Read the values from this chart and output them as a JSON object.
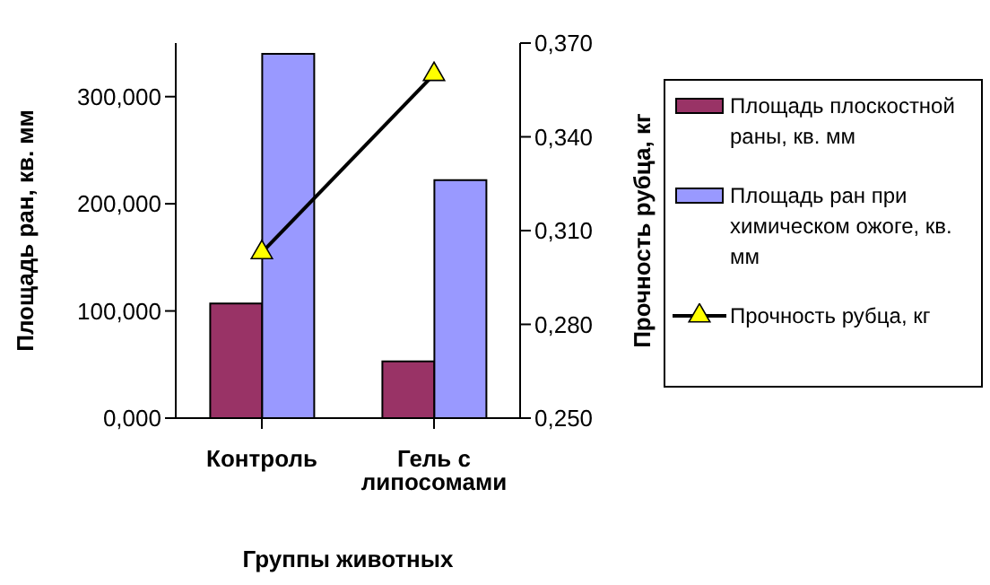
{
  "chart_data": {
    "type": "bar",
    "xlabel": "Группы животных",
    "ylabel": "Площадь ран, кв. мм",
    "y2label": "Прочность рубца, кг",
    "categories": [
      "Контроль",
      "Гель с липосомами"
    ],
    "series": [
      {
        "name": "Площадь плоскостной раны, кв. мм",
        "color": "#993366",
        "values": [
          107,
          53
        ]
      },
      {
        "name": "Площадь ран при химическом ожоге, кв. мм",
        "color": "#9999ff",
        "values": [
          340,
          222
        ]
      },
      {
        "name": "Прочность рубца, кг",
        "type": "line",
        "axis": "y2",
        "color": "#000000",
        "marker": "triangle",
        "values": [
          0.303,
          0.36
        ]
      }
    ],
    "ylim": [
      0,
      350
    ],
    "yticks": [
      {
        "value": 0,
        "label": "0,000"
      },
      {
        "value": 100,
        "label": "100,000"
      },
      {
        "value": 200,
        "label": "200,000"
      },
      {
        "value": 300,
        "label": "300,000"
      }
    ],
    "y2lim": [
      0.25,
      0.37
    ],
    "y2ticks": [
      {
        "value": 0.25,
        "label": "0,250"
      },
      {
        "value": 0.28,
        "label": "0,280"
      },
      {
        "value": 0.31,
        "label": "0,310"
      },
      {
        "value": 0.34,
        "label": "0,340"
      },
      {
        "value": 0.37,
        "label": "0,370"
      }
    ],
    "grid": false,
    "legend": "right"
  }
}
